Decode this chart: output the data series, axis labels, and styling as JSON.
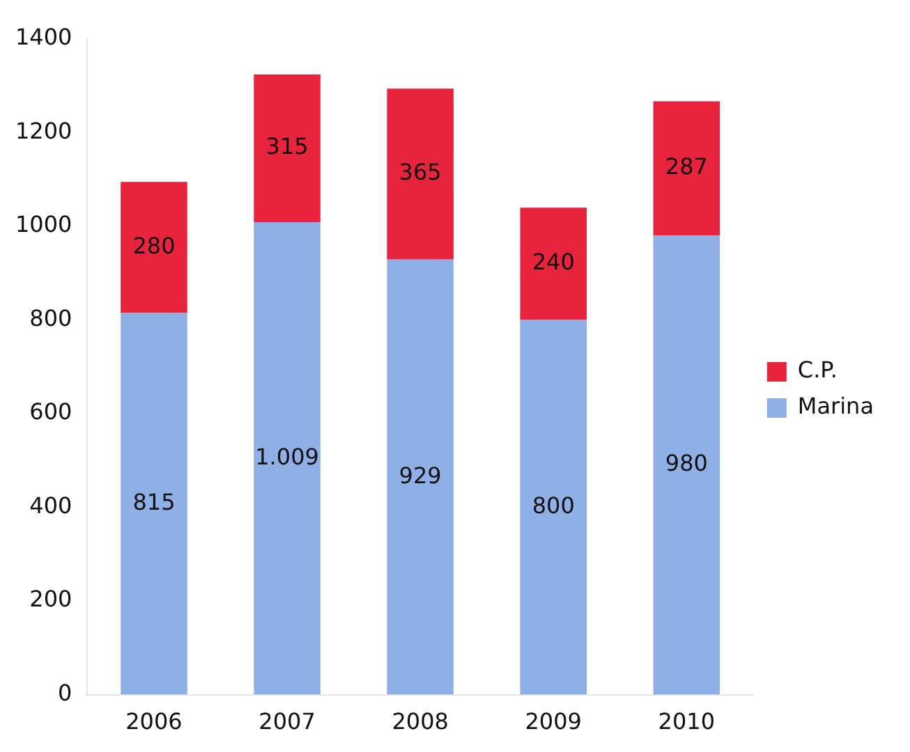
{
  "chart_data": {
    "type": "bar",
    "stacked": true,
    "categories": [
      "2006",
      "2007",
      "2008",
      "2009",
      "2010"
    ],
    "series": [
      {
        "name": "Marina",
        "color": "#8fb0e6",
        "values": [
          815,
          1009,
          929,
          800,
          980
        ],
        "value_labels": [
          "815",
          "1.009",
          "929",
          "800",
          "980"
        ]
      },
      {
        "name": "C.P.",
        "color": "#e8243c",
        "values": [
          280,
          315,
          365,
          240,
          287
        ],
        "value_labels": [
          "280",
          "315",
          "365",
          "240",
          "287"
        ]
      }
    ],
    "ylim": [
      0,
      1400
    ],
    "yticks": [
      0,
      200,
      400,
      600,
      800,
      1000,
      1200,
      1400
    ],
    "grid": false,
    "legend": "right"
  }
}
